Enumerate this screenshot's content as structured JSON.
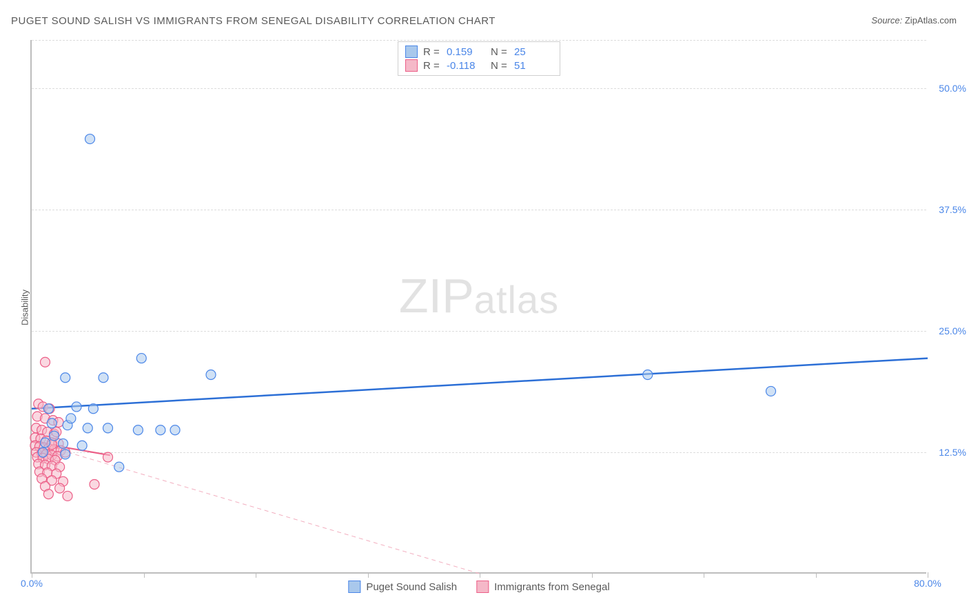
{
  "title": "PUGET SOUND SALISH VS IMMIGRANTS FROM SENEGAL DISABILITY CORRELATION CHART",
  "source": {
    "label": "Source:",
    "value": "ZipAtlas.com"
  },
  "y_axis_label": "Disability",
  "watermark": {
    "zip": "ZIP",
    "rest": "atlas"
  },
  "chart": {
    "type": "scatter",
    "xlim": [
      0,
      80
    ],
    "ylim": [
      0,
      55
    ],
    "x_ticks": [
      0,
      10,
      20,
      30,
      40,
      50,
      60,
      70,
      80
    ],
    "x_tick_labels": {
      "0": "0.0%",
      "80": "80.0%"
    },
    "y_grid": [
      12.5,
      25.0,
      37.5,
      50.0
    ],
    "y_tick_labels": [
      "12.5%",
      "25.0%",
      "37.5%",
      "50.0%"
    ],
    "grid_color": "#dcdcdc",
    "axis_color": "#bdbdbd",
    "background_color": "#ffffff",
    "marker_radius": 7,
    "marker_opacity": 0.55,
    "series": [
      {
        "name": "Puget Sound Salish",
        "color_fill": "#a9c8ec",
        "color_stroke": "#4a86e8",
        "R": "0.159",
        "N": "25",
        "points": [
          [
            5.2,
            44.8
          ],
          [
            3.0,
            20.2
          ],
          [
            6.4,
            20.2
          ],
          [
            9.8,
            22.2
          ],
          [
            16.0,
            20.5
          ],
          [
            55.0,
            20.5
          ],
          [
            66.0,
            18.8
          ],
          [
            1.5,
            17.0
          ],
          [
            4.0,
            17.2
          ],
          [
            5.5,
            17.0
          ],
          [
            1.8,
            15.5
          ],
          [
            3.2,
            15.3
          ],
          [
            5.0,
            15.0
          ],
          [
            6.8,
            15.0
          ],
          [
            9.5,
            14.8
          ],
          [
            11.5,
            14.8
          ],
          [
            12.8,
            14.8
          ],
          [
            1.2,
            13.5
          ],
          [
            2.8,
            13.4
          ],
          [
            4.5,
            13.2
          ],
          [
            1.0,
            12.5
          ],
          [
            3.0,
            12.3
          ],
          [
            7.8,
            11.0
          ],
          [
            2.0,
            14.2
          ],
          [
            3.5,
            16.0
          ]
        ],
        "trend": {
          "x1": 0,
          "y1": 17.0,
          "x2": 80,
          "y2": 22.2,
          "width": 2.5,
          "dash": "none",
          "color": "#2c6fd6"
        }
      },
      {
        "name": "Immigrants from Senegal",
        "color_fill": "#f5b8c8",
        "color_stroke": "#ec5e87",
        "R": "-0.118",
        "N": "51",
        "points": [
          [
            1.2,
            21.8
          ],
          [
            0.6,
            17.5
          ],
          [
            1.0,
            17.2
          ],
          [
            1.6,
            17.0
          ],
          [
            0.5,
            16.2
          ],
          [
            1.2,
            16.0
          ],
          [
            1.9,
            15.8
          ],
          [
            2.4,
            15.6
          ],
          [
            0.4,
            15.0
          ],
          [
            0.9,
            14.8
          ],
          [
            1.4,
            14.6
          ],
          [
            2.0,
            14.4
          ],
          [
            0.3,
            14.0
          ],
          [
            0.8,
            13.9
          ],
          [
            1.3,
            13.7
          ],
          [
            1.8,
            13.5
          ],
          [
            2.4,
            13.4
          ],
          [
            0.3,
            13.2
          ],
          [
            0.7,
            13.1
          ],
          [
            1.1,
            13.0
          ],
          [
            1.5,
            12.9
          ],
          [
            2.0,
            12.8
          ],
          [
            2.6,
            12.7
          ],
          [
            0.4,
            12.5
          ],
          [
            0.9,
            12.4
          ],
          [
            1.3,
            12.3
          ],
          [
            1.8,
            12.2
          ],
          [
            2.3,
            12.1
          ],
          [
            0.5,
            12.0
          ],
          [
            1.0,
            11.9
          ],
          [
            1.5,
            11.8
          ],
          [
            2.1,
            11.7
          ],
          [
            6.8,
            12.0
          ],
          [
            0.6,
            11.3
          ],
          [
            1.2,
            11.2
          ],
          [
            1.8,
            11.1
          ],
          [
            2.5,
            11.0
          ],
          [
            0.7,
            10.5
          ],
          [
            1.4,
            10.4
          ],
          [
            2.2,
            10.3
          ],
          [
            0.9,
            9.8
          ],
          [
            1.8,
            9.6
          ],
          [
            2.8,
            9.5
          ],
          [
            1.2,
            9.0
          ],
          [
            2.5,
            8.8
          ],
          [
            5.6,
            9.2
          ],
          [
            1.5,
            8.2
          ],
          [
            3.2,
            8.0
          ],
          [
            1.8,
            13.3
          ],
          [
            2.2,
            14.6
          ],
          [
            3.0,
            12.5
          ]
        ],
        "trend_solid": {
          "x1": 0,
          "y1": 13.6,
          "x2": 7,
          "y2": 12.2,
          "width": 2.2,
          "color": "#ec5e87"
        },
        "trend": {
          "x1": 0,
          "y1": 13.6,
          "x2": 40,
          "y2": 0,
          "width": 1,
          "dash": "6,5",
          "color": "#f2aebf"
        }
      }
    ]
  },
  "legend_top": {
    "rows": [
      {
        "swatch_fill": "#a9c8ec",
        "swatch_stroke": "#4a86e8",
        "r_label": "R =",
        "r_value": "0.159",
        "n_label": "N =",
        "n_value": "25"
      },
      {
        "swatch_fill": "#f5b8c8",
        "swatch_stroke": "#ec5e87",
        "r_label": "R =",
        "r_value": "-0.118",
        "n_label": "N =",
        "n_value": "51"
      }
    ]
  },
  "legend_bottom": {
    "items": [
      {
        "swatch_fill": "#a9c8ec",
        "swatch_stroke": "#4a86e8",
        "label": "Puget Sound Salish"
      },
      {
        "swatch_fill": "#f5b8c8",
        "swatch_stroke": "#ec5e87",
        "label": "Immigrants from Senegal"
      }
    ]
  }
}
